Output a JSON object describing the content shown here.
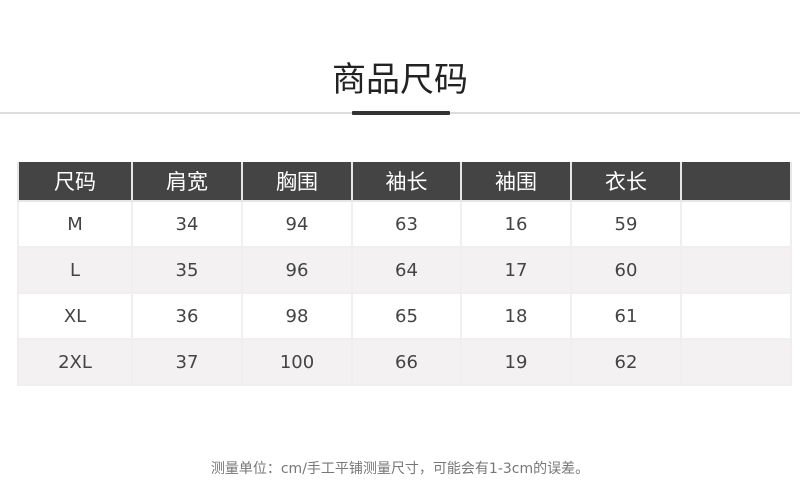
{
  "title": "商品尺码",
  "table": {
    "headers": [
      "尺码",
      "肩宽",
      "胸围",
      "袖长",
      "袖围",
      "衣长",
      ""
    ],
    "rows": [
      [
        "M",
        "34",
        "94",
        "63",
        "16",
        "59",
        ""
      ],
      [
        "L",
        "35",
        "96",
        "64",
        "17",
        "60",
        ""
      ],
      [
        "XL",
        "36",
        "98",
        "65",
        "18",
        "61",
        ""
      ],
      [
        "2XL",
        "37",
        "100",
        "66",
        "19",
        "62",
        ""
      ]
    ]
  },
  "note": "测量单位：cm/手工平铺测量尺寸，可能会有1-3cm的误差。"
}
